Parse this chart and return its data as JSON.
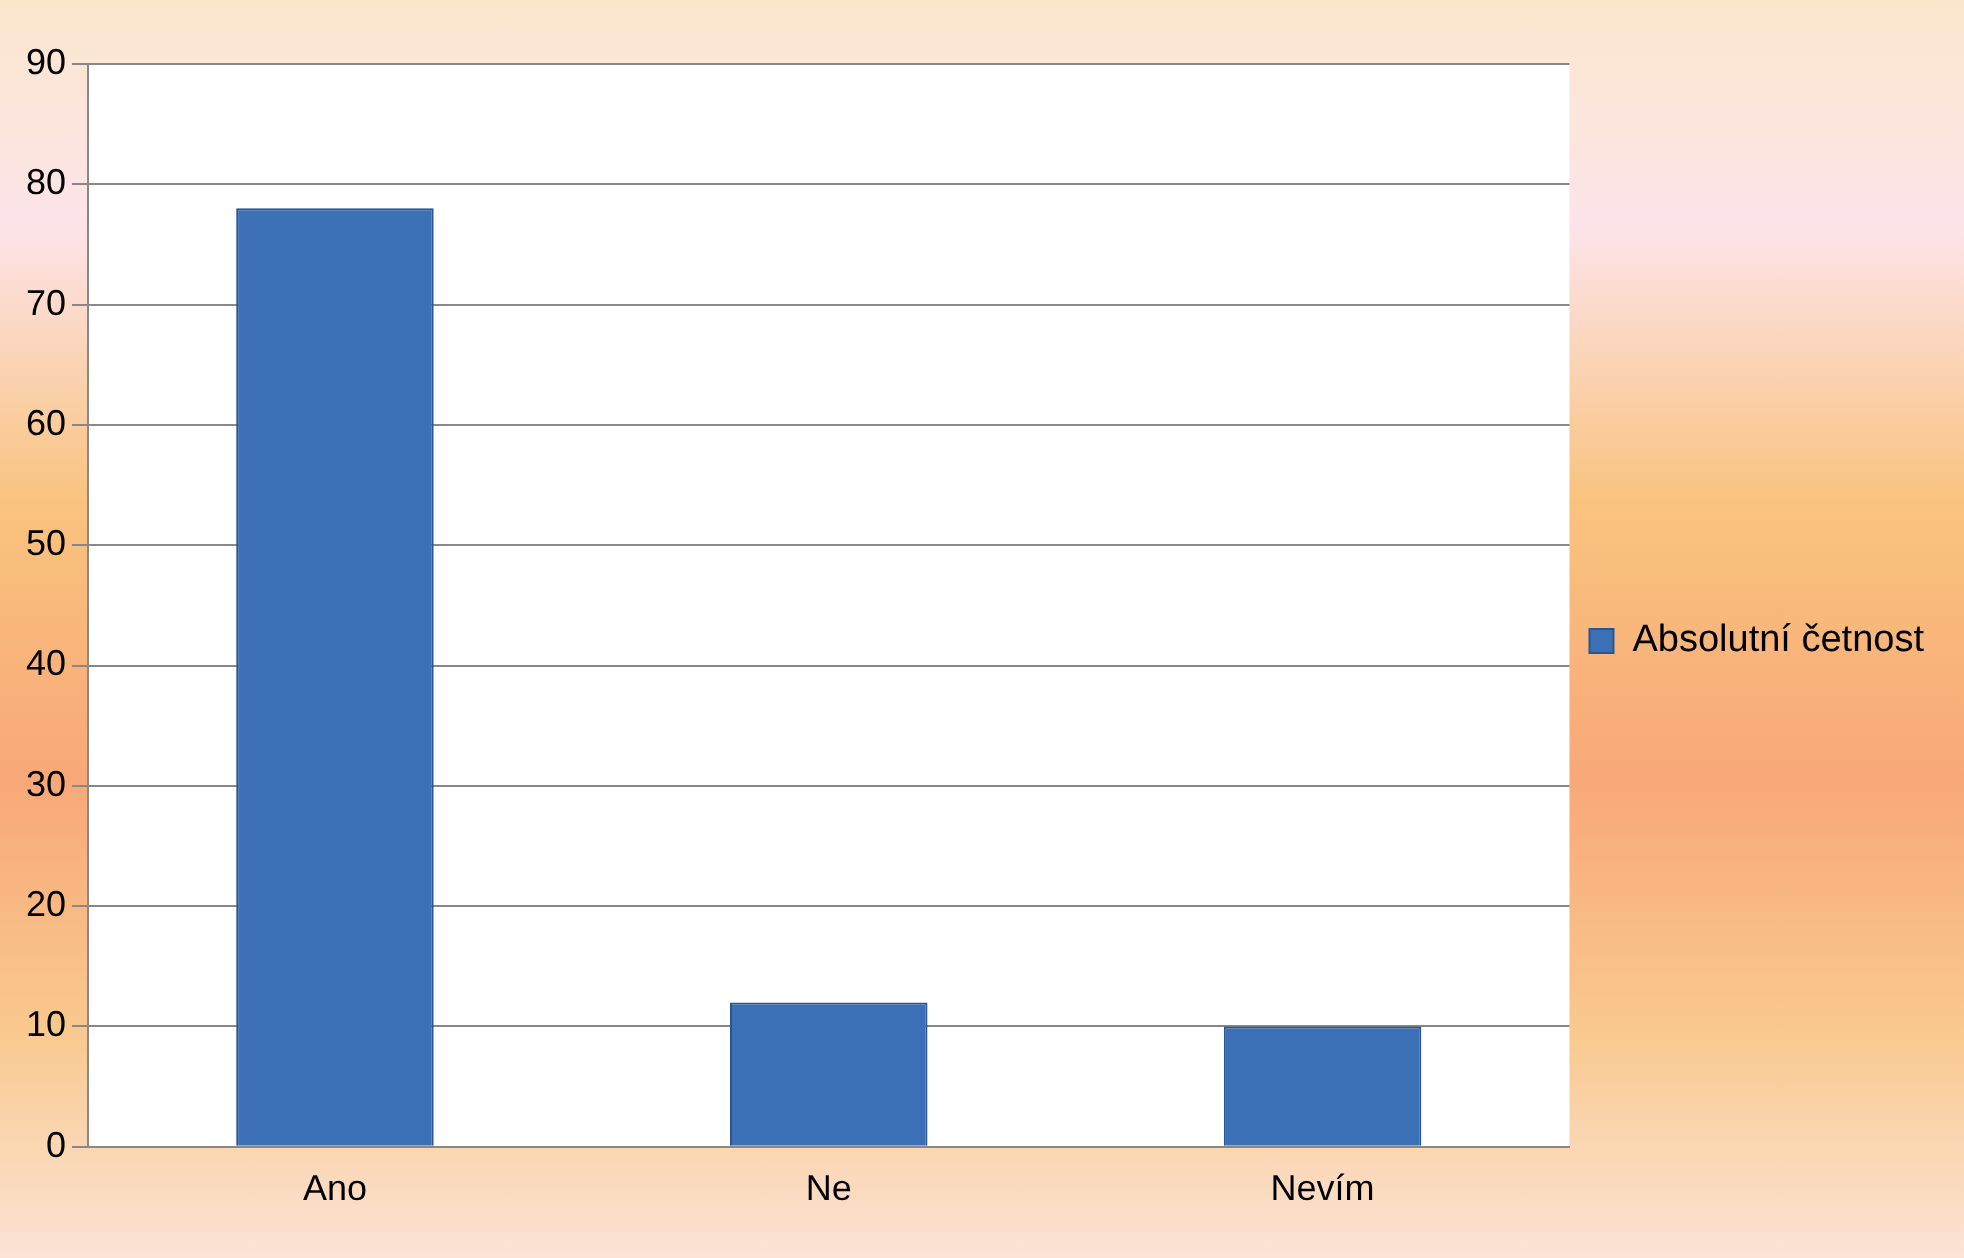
{
  "chart_data": {
    "type": "bar",
    "categories": [
      "Ano",
      "Ne",
      "Nevím"
    ],
    "series": [
      {
        "name": "Absolutní četnost",
        "color": "#3b6fb6",
        "values": [
          78,
          12,
          10
        ]
      }
    ],
    "ylim": [
      0,
      90
    ],
    "yticks": [
      0,
      10,
      20,
      30,
      40,
      50,
      60,
      70,
      80,
      90
    ],
    "grid": "y",
    "legend": "right"
  }
}
